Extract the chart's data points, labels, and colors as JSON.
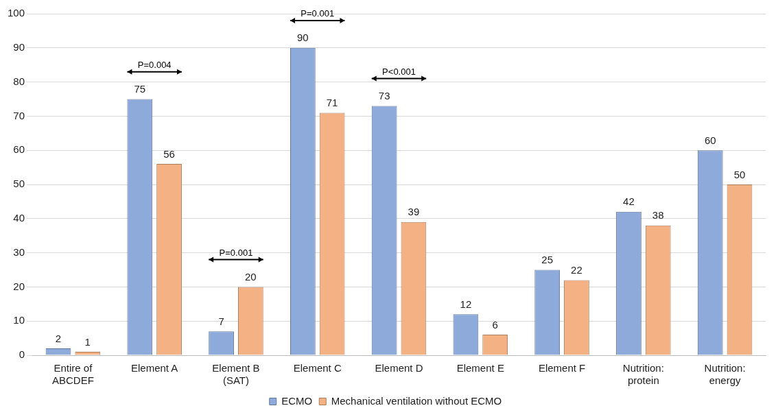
{
  "chart_data": {
    "type": "bar",
    "categories": [
      "Entire of ABCDEF",
      "Element A",
      "Element B (SAT)",
      "Element C",
      "Element D",
      "Element E",
      "Element F",
      "Nutrition: protein",
      "Nutrition: energy"
    ],
    "series": [
      {
        "name": "ECMO",
        "color": "#8eaadb",
        "values": [
          2,
          75,
          7,
          90,
          73,
          12,
          25,
          42,
          60
        ]
      },
      {
        "name": "Mechanical ventilation without ECMO",
        "color": "#f4b183",
        "values": [
          1,
          56,
          20,
          71,
          39,
          6,
          22,
          38,
          50
        ]
      }
    ],
    "ylim": [
      0,
      100
    ],
    "yticks": [
      0,
      10,
      20,
      30,
      40,
      50,
      60,
      70,
      80,
      90,
      100
    ],
    "grid": "y",
    "legend": "bottom",
    "data_labels": true,
    "annotations": [
      "P=0.004",
      "P=0.001",
      "P=0.001",
      "P<0.001"
    ]
  }
}
